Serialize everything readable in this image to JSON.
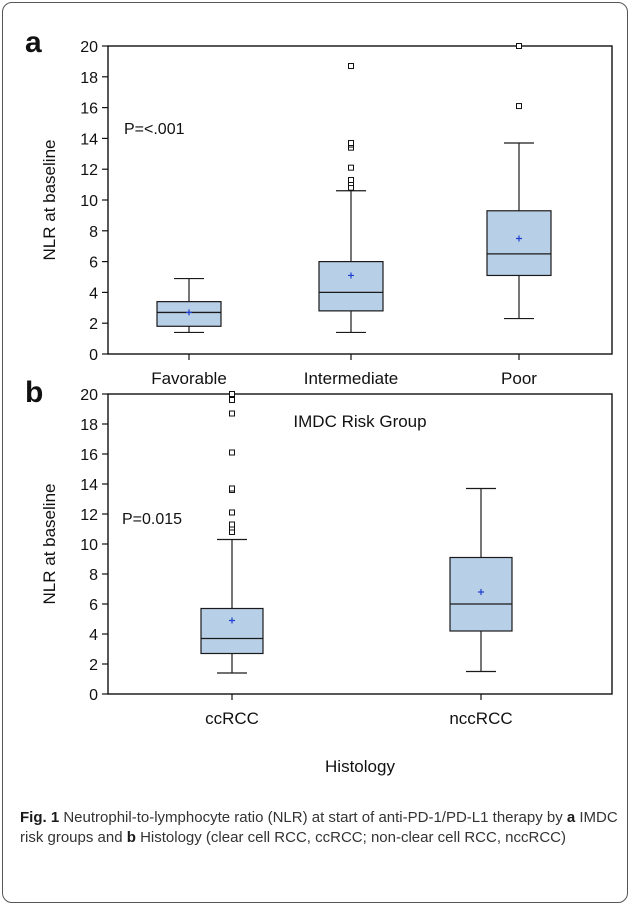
{
  "chart_data": [
    {
      "type": "box",
      "panel": "a",
      "ylabel": "NLR at baseline",
      "xlabel": "IMDC Risk Group",
      "ylim": [
        0,
        20
      ],
      "yticks": [
        0,
        2,
        4,
        6,
        8,
        10,
        12,
        14,
        16,
        18,
        20
      ],
      "annotation": "P=<.001",
      "categories": [
        "Favorable",
        "Intermediate",
        "Poor"
      ],
      "boxes": [
        {
          "category": "Favorable",
          "min": 1.4,
          "q1": 1.8,
          "median": 2.7,
          "q3": 3.4,
          "max": 4.9,
          "mean": 2.7,
          "outliers": []
        },
        {
          "category": "Intermediate",
          "min": 1.4,
          "q1": 2.8,
          "median": 4.0,
          "q3": 6.0,
          "max": 10.6,
          "mean": 5.1,
          "outliers": [
            10.8,
            11.1,
            11.3,
            12.1,
            13.4,
            13.6,
            13.7,
            18.7
          ]
        },
        {
          "category": "Poor",
          "min": 2.3,
          "q1": 5.1,
          "median": 6.5,
          "q3": 9.3,
          "max": 13.7,
          "mean": 7.5,
          "outliers": [
            16.1,
            20.0
          ]
        }
      ]
    },
    {
      "type": "box",
      "panel": "b",
      "ylabel": "NLR at baseline",
      "xlabel": "Histology",
      "ylim": [
        0,
        20
      ],
      "yticks": [
        0,
        2,
        4,
        6,
        8,
        10,
        12,
        14,
        16,
        18,
        20
      ],
      "annotation": "P=0.015",
      "categories": [
        "ccRCC",
        "nccRCC"
      ],
      "boxes": [
        {
          "category": "ccRCC",
          "min": 1.4,
          "q1": 2.7,
          "median": 3.7,
          "q3": 5.7,
          "max": 10.3,
          "mean": 4.9,
          "outliers": [
            10.8,
            11.1,
            11.3,
            12.1,
            13.6,
            13.7,
            16.1,
            18.7,
            19.6,
            20.0
          ]
        },
        {
          "category": "nccRCC",
          "min": 1.5,
          "q1": 4.2,
          "median": 6.0,
          "q3": 9.1,
          "max": 13.7,
          "mean": 6.8,
          "outliers": []
        }
      ]
    }
  ],
  "caption": {
    "label": "Fig. 1",
    "text_1": " Neutrophil-to-lymphocyte ratio (NLR) at start of anti-PD-1/PD-L1 therapy by ",
    "bold_a": "a",
    "text_2": " IMDC risk groups and ",
    "bold_b": "b",
    "text_3": " Histology (clear cell RCC, ccRCC; non-clear cell RCC, nccRCC)"
  },
  "colors": {
    "box_fill": "#b8cfe8",
    "box_stroke": "#1a1a1a",
    "mean_marker": "#1f3fd0",
    "frame": "#555555"
  }
}
